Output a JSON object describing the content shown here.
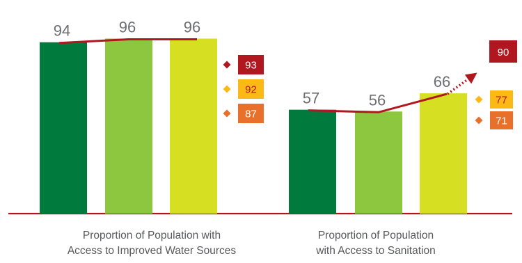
{
  "chart_data": {
    "type": "bar",
    "ylim": [
      0,
      100
    ],
    "groups": [
      {
        "label_lines": [
          "Proportion of Population with",
          "Access to Improved Water Sources"
        ],
        "values": [
          94,
          96,
          96
        ],
        "targets": [
          {
            "value": 93,
            "color": "#b1171f",
            "text_color": "#ffffff"
          },
          {
            "value": 92,
            "color": "#fbb916",
            "text_color": "#b1171f"
          },
          {
            "value": 87,
            "color": "#e8702a",
            "text_color": "#ffffff"
          }
        ]
      },
      {
        "label_lines": [
          "Proportion of Population",
          "with Access to Sanitation"
        ],
        "values": [
          57,
          56,
          66
        ],
        "projection": {
          "value": 90,
          "color": "#b1171f",
          "text_color": "#ffffff"
        },
        "targets": [
          {
            "value": 77,
            "color": "#fbb916",
            "text_color": "#b1171f"
          },
          {
            "value": 71,
            "color": "#e8702a",
            "text_color": "#ffffff"
          }
        ]
      }
    ],
    "bar_colors": [
      "#007a3d",
      "#8dc63f",
      "#d7df23"
    ],
    "trend_color": "#b1171f",
    "baseline_color": "#b1171f"
  }
}
